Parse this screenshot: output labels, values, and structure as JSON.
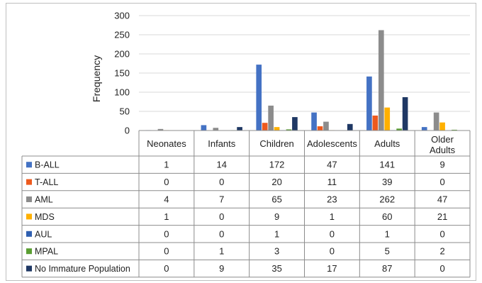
{
  "chart_data": {
    "type": "bar",
    "ylabel": "Frequency",
    "ylim": [
      0,
      300
    ],
    "yticks": [
      "0",
      "50",
      "100",
      "150",
      "200",
      "250",
      "300"
    ],
    "grid": true,
    "legend": "data-table",
    "categories": [
      "Neonates",
      "Infants",
      "Children",
      "Adolescents",
      "Adults",
      "Older Adults"
    ],
    "series": [
      {
        "name": "B-ALL",
        "color": "#4472c4",
        "values": [
          1,
          14,
          172,
          47,
          141,
          9
        ]
      },
      {
        "name": "T-ALL",
        "color": "#ed5a1e",
        "values": [
          0,
          0,
          20,
          11,
          39,
          0
        ]
      },
      {
        "name": "AML",
        "color": "#8c8c8c",
        "values": [
          4,
          7,
          65,
          23,
          262,
          47
        ]
      },
      {
        "name": "MDS",
        "color": "#ffb000",
        "values": [
          1,
          0,
          9,
          1,
          60,
          21
        ]
      },
      {
        "name": "AUL",
        "color": "#2f5fb0",
        "values": [
          0,
          0,
          1,
          0,
          1,
          0
        ]
      },
      {
        "name": "MPAL",
        "color": "#5a9e32",
        "values": [
          0,
          1,
          3,
          0,
          5,
          2
        ]
      },
      {
        "name": "No Immature Population",
        "color": "#1f3864",
        "values": [
          0,
          9,
          35,
          17,
          87,
          0
        ]
      }
    ]
  }
}
